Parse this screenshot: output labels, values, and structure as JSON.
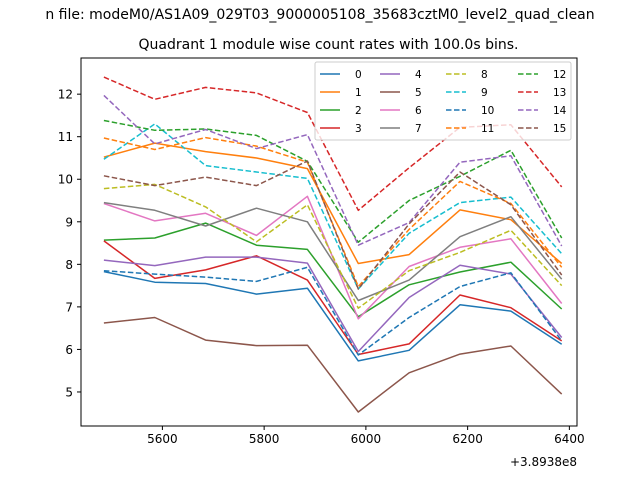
{
  "chart_data": {
    "type": "line",
    "suptitle": "n file: modeM0/AS1A09_029T03_9000005108_35683cztM0_level2_quad_clean",
    "title": "Quadrant 1 module wise count rates with 100.0s bins.",
    "xlabel": "",
    "ylabel": "",
    "x_offset_label": "+3.8938e8",
    "xlim": [
      5440,
      6415
    ],
    "ylim": [
      4.2,
      12.85
    ],
    "xticks": [
      5600,
      5800,
      6000,
      6200,
      6400
    ],
    "yticks": [
      5,
      6,
      7,
      8,
      9,
      10,
      11,
      12
    ],
    "x": [
      5485,
      5585,
      5685,
      5785,
      5885,
      5985,
      6085,
      6185,
      6285,
      6385
    ],
    "legend_location": "upper-right",
    "series": [
      {
        "name": "0",
        "color": "#1f77b4",
        "dash": "solid",
        "values": [
          7.83,
          7.58,
          7.55,
          7.3,
          7.44,
          5.73,
          5.98,
          7.05,
          6.9,
          6.12
        ]
      },
      {
        "name": "1",
        "color": "#ff7f0e",
        "dash": "solid",
        "values": [
          10.52,
          10.85,
          10.65,
          10.5,
          10.25,
          8.02,
          8.23,
          9.28,
          9.05,
          8.02
        ]
      },
      {
        "name": "2",
        "color": "#2ca02c",
        "dash": "solid",
        "values": [
          8.57,
          8.62,
          8.97,
          8.45,
          8.35,
          6.77,
          7.52,
          7.82,
          8.05,
          6.95
        ]
      },
      {
        "name": "3",
        "color": "#d62728",
        "dash": "solid",
        "values": [
          8.55,
          7.67,
          7.87,
          8.2,
          7.63,
          5.88,
          6.13,
          7.28,
          6.98,
          6.2
        ]
      },
      {
        "name": "4",
        "color": "#9467bd",
        "dash": "solid",
        "values": [
          8.1,
          7.97,
          8.17,
          8.17,
          8.03,
          5.95,
          7.22,
          7.98,
          7.77,
          6.28
        ]
      },
      {
        "name": "5",
        "color": "#8c564b",
        "dash": "solid",
        "values": [
          6.62,
          6.75,
          6.22,
          6.09,
          6.1,
          4.53,
          5.45,
          5.89,
          6.08,
          4.95
        ]
      },
      {
        "name": "6",
        "color": "#e377c2",
        "dash": "solid",
        "values": [
          9.43,
          9.02,
          9.2,
          8.68,
          9.6,
          6.72,
          7.95,
          8.4,
          8.6,
          7.08
        ]
      },
      {
        "name": "7",
        "color": "#7f7f7f",
        "dash": "solid",
        "values": [
          9.45,
          9.27,
          8.9,
          9.32,
          9.0,
          7.15,
          7.63,
          8.65,
          9.12,
          7.65
        ]
      },
      {
        "name": "8",
        "color": "#bcbd22",
        "dash": "dashed",
        "values": [
          9.78,
          9.88,
          9.35,
          8.53,
          9.4,
          6.97,
          7.85,
          8.28,
          8.8,
          7.5
        ]
      },
      {
        "name": "9",
        "color": "#17becf",
        "dash": "dashed",
        "values": [
          10.47,
          11.3,
          10.32,
          10.17,
          10.02,
          7.42,
          8.73,
          9.45,
          9.58,
          8.25
        ]
      },
      {
        "name": "10",
        "color": "#1f77b4",
        "dash": "dashed",
        "values": [
          7.85,
          7.77,
          7.7,
          7.6,
          7.93,
          5.87,
          6.75,
          7.48,
          7.8,
          6.2
        ]
      },
      {
        "name": "11",
        "color": "#ff7f0e",
        "dash": "dashed",
        "values": [
          10.97,
          10.7,
          10.98,
          10.78,
          10.4,
          7.48,
          8.82,
          9.95,
          9.43,
          7.93
        ]
      },
      {
        "name": "12",
        "color": "#2ca02c",
        "dash": "dashed",
        "values": [
          11.38,
          11.15,
          11.18,
          11.03,
          10.42,
          8.52,
          9.5,
          10.07,
          10.68,
          8.62
        ]
      },
      {
        "name": "13",
        "color": "#d62728",
        "dash": "dashed",
        "values": [
          12.4,
          11.88,
          12.16,
          12.03,
          11.57,
          9.27,
          10.27,
          11.22,
          11.28,
          9.82
        ]
      },
      {
        "name": "14",
        "color": "#9467bd",
        "dash": "dashed",
        "values": [
          11.97,
          10.83,
          11.17,
          10.72,
          11.05,
          8.45,
          8.98,
          10.4,
          10.55,
          8.43
        ]
      },
      {
        "name": "15",
        "color": "#8c564b",
        "dash": "dashed",
        "values": [
          10.08,
          9.85,
          10.05,
          9.85,
          10.43,
          7.42,
          8.95,
          10.17,
          9.4,
          7.75
        ]
      }
    ]
  }
}
